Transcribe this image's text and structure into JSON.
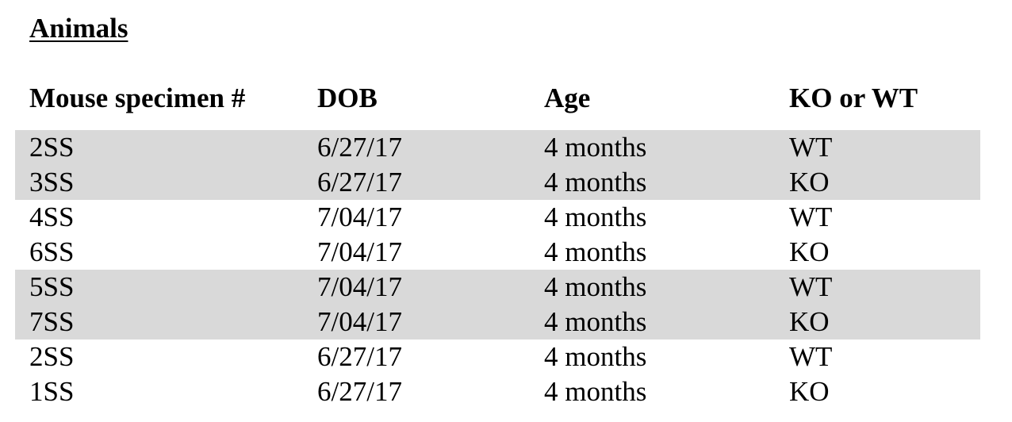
{
  "document": {
    "title": "Animals"
  },
  "table": {
    "headers": [
      "Mouse specimen #",
      "DOB",
      "Age",
      "KO or WT"
    ],
    "rows": [
      {
        "specimen": "2SS",
        "dob": "6/27/17",
        "age": "4 months",
        "type": "WT",
        "shaded": true
      },
      {
        "specimen": "3SS",
        "dob": "6/27/17",
        "age": "4 months",
        "type": "KO",
        "shaded": true
      },
      {
        "specimen": "4SS",
        "dob": "7/04/17",
        "age": "4 months",
        "type": "WT",
        "shaded": false
      },
      {
        "specimen": "6SS",
        "dob": "7/04/17",
        "age": "4 months",
        "type": "KO",
        "shaded": false
      },
      {
        "specimen": "5SS",
        "dob": "7/04/17",
        "age": "4 months",
        "type": "WT",
        "shaded": true
      },
      {
        "specimen": "7SS",
        "dob": "7/04/17",
        "age": "4 months",
        "type": "KO",
        "shaded": true
      },
      {
        "specimen": "2SS",
        "dob": "6/27/17",
        "age": "4 months",
        "type": "WT",
        "shaded": false
      },
      {
        "specimen": "1SS",
        "dob": "6/27/17",
        "age": "4 months",
        "type": "KO",
        "shaded": false
      }
    ],
    "shade_color": "#d9d9d9"
  }
}
